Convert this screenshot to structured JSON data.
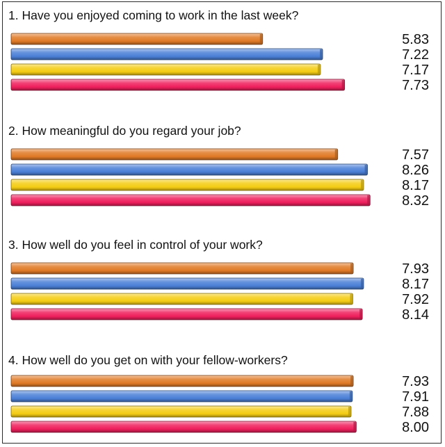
{
  "chart_data": {
    "type": "bar",
    "orientation": "horizontal",
    "xlim": [
      0,
      10
    ],
    "grid": false,
    "legend": "none",
    "series_colors": [
      "#e07a26",
      "#4a7fd6",
      "#f4cc14",
      "#ee1f5c"
    ],
    "groups": [
      {
        "title": "1. Have you enjoyed coming to work in the last week?",
        "values": [
          5.83,
          7.22,
          7.17,
          7.73
        ],
        "labels": [
          "5.83",
          "7.22",
          "7.17",
          "7.73"
        ]
      },
      {
        "title": "2. How meaningful do you regard your job?",
        "values": [
          7.57,
          8.26,
          8.17,
          8.32
        ],
        "labels": [
          "7.57",
          "8.26",
          "8.17",
          "8.32"
        ]
      },
      {
        "title": "3. How well do you feel in control of your work?",
        "values": [
          7.93,
          8.17,
          7.92,
          8.14
        ],
        "labels": [
          "7.93",
          "8.17",
          "7.92",
          "8.14"
        ]
      },
      {
        "title": "4. How well do you get on with your fellow-workers?",
        "values": [
          7.93,
          7.91,
          7.88,
          8.0
        ],
        "labels": [
          "7.93",
          "7.91",
          "7.88",
          "8.00"
        ]
      }
    ]
  }
}
